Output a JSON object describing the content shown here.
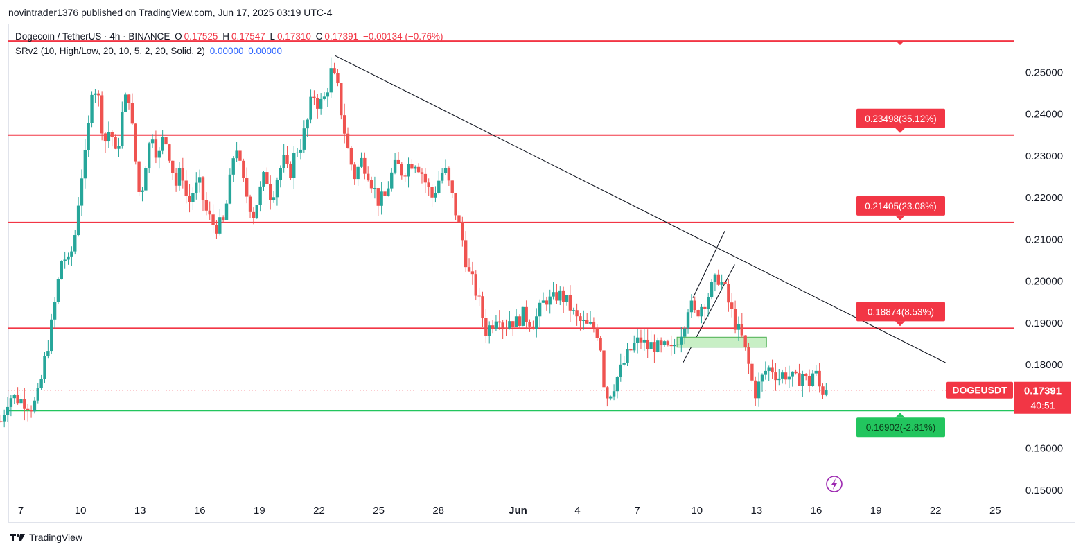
{
  "publisher_line": "novintrader1376 published on TradingView.com, Jun 17, 2025 03:19 UTC-4",
  "legend": {
    "symbol": "Dogecoin / TetherUS · 4h · BINANCE",
    "open_label": "O",
    "open": "0.17525",
    "high_label": "H",
    "high": "0.17547",
    "low_label": "L",
    "low": "0.17310",
    "close_label": "C",
    "close": "0.17391",
    "change": "−0.00134 (−0.76%)",
    "indicator": "SRv2 (10, High/Low, 20, 10, 5, 2, 20, Solid, 2)",
    "indicator_v1": "0.00000",
    "indicator_v2": "0.00000"
  },
  "footer_brand": "TradingView",
  "colors": {
    "up": "#26a69a",
    "down": "#ef5350",
    "red_line": "#f23645",
    "green_line": "#22c55e",
    "box_fill": "#c8efc5"
  },
  "chart_data": {
    "type": "candlestick",
    "symbol": "DOGEUSDT",
    "last_price": "0.17391",
    "countdown": "40:51",
    "y_ticks": [
      "0.25000",
      "0.24000",
      "0.23000",
      "0.22000",
      "0.21000",
      "0.20000",
      "0.19000",
      "0.18000",
      "0.17000",
      "0.16000",
      "0.15000"
    ],
    "y_tick_values": [
      0.25,
      0.24,
      0.23,
      0.22,
      0.21,
      0.2,
      0.19,
      0.18,
      0.17,
      0.16,
      0.15
    ],
    "y_range": [
      0.1425,
      0.2615
    ],
    "x_ticks": [
      {
        "label": "7",
        "day": 7
      },
      {
        "label": "10",
        "day": 10
      },
      {
        "label": "13",
        "day": 13
      },
      {
        "label": "16",
        "day": 16
      },
      {
        "label": "19",
        "day": 19
      },
      {
        "label": "22",
        "day": 22
      },
      {
        "label": "25",
        "day": 25
      },
      {
        "label": "28",
        "day": 28
      },
      {
        "label": "Jun",
        "day": 32
      },
      {
        "label": "4",
        "day": 35
      },
      {
        "label": "7",
        "day": 38
      },
      {
        "label": "10",
        "day": 41
      },
      {
        "label": "13",
        "day": 44
      },
      {
        "label": "16",
        "day": 47
      },
      {
        "label": "19",
        "day": 50
      },
      {
        "label": "22",
        "day": 53
      },
      {
        "label": "25",
        "day": 56
      }
    ],
    "levels": [
      {
        "value": 0.2575,
        "color": "red",
        "label": ""
      },
      {
        "value": 0.23498,
        "color": "red",
        "label": "0.23498(35.12%)"
      },
      {
        "value": 0.21405,
        "color": "red",
        "label": "0.21405(23.08%)"
      },
      {
        "value": 0.18874,
        "color": "red",
        "label": "0.18874(8.53%)"
      },
      {
        "value": 0.16902,
        "color": "green",
        "label": "0.16902(-2.81%)"
      }
    ],
    "trendline": {
      "from": {
        "day": 22.8,
        "price": 0.254
      },
      "to": {
        "day": 53.5,
        "price": 0.1805
      }
    },
    "channel": [
      {
        "from": {
          "day": 40.8,
          "price": 0.196
        },
        "to": {
          "day": 42.4,
          "price": 0.212
        }
      },
      {
        "from": {
          "day": 40.3,
          "price": 0.1805
        },
        "to": {
          "day": 42.9,
          "price": 0.204
        }
      }
    ],
    "zone": {
      "day_start": 40.0,
      "day_end": 44.5,
      "price_top": 0.1866,
      "price_bottom": 0.1842
    },
    "candles_path": [
      [
        6.0,
        0.1665
      ],
      [
        6.4,
        0.1725
      ],
      [
        6.8,
        0.172
      ],
      [
        7.2,
        0.1712
      ],
      [
        7.6,
        0.1698
      ],
      [
        7.9,
        0.1728
      ],
      [
        8.2,
        0.181
      ],
      [
        8.5,
        0.188
      ],
      [
        8.8,
        0.1975
      ],
      [
        9.1,
        0.2065
      ],
      [
        9.4,
        0.204
      ],
      [
        9.7,
        0.21
      ],
      [
        10.0,
        0.224
      ],
      [
        10.3,
        0.231
      ],
      [
        10.6,
        0.248
      ],
      [
        10.9,
        0.244
      ],
      [
        11.2,
        0.233
      ],
      [
        11.5,
        0.237
      ],
      [
        11.8,
        0.229
      ],
      [
        12.1,
        0.24
      ],
      [
        12.4,
        0.246
      ],
      [
        12.7,
        0.232
      ],
      [
        13.0,
        0.219
      ],
      [
        13.3,
        0.229
      ],
      [
        13.6,
        0.236
      ],
      [
        13.9,
        0.229
      ],
      [
        14.2,
        0.235
      ],
      [
        14.5,
        0.23
      ],
      [
        14.8,
        0.223
      ],
      [
        15.1,
        0.227
      ],
      [
        15.4,
        0.218
      ],
      [
        15.7,
        0.222
      ],
      [
        16.0,
        0.223
      ],
      [
        16.3,
        0.217
      ],
      [
        16.6,
        0.214
      ],
      [
        16.9,
        0.213
      ],
      [
        17.2,
        0.214
      ],
      [
        17.5,
        0.223
      ],
      [
        17.8,
        0.234
      ],
      [
        18.1,
        0.225
      ],
      [
        18.4,
        0.22
      ],
      [
        18.7,
        0.216
      ],
      [
        19.0,
        0.221
      ],
      [
        19.3,
        0.226
      ],
      [
        19.6,
        0.22
      ],
      [
        19.9,
        0.225
      ],
      [
        20.2,
        0.229
      ],
      [
        20.5,
        0.225
      ],
      [
        20.8,
        0.231
      ],
      [
        21.1,
        0.233
      ],
      [
        21.4,
        0.238
      ],
      [
        21.7,
        0.245
      ],
      [
        22.0,
        0.242
      ],
      [
        22.3,
        0.244
      ],
      [
        22.6,
        0.25
      ],
      [
        22.9,
        0.247
      ],
      [
        23.2,
        0.238
      ],
      [
        23.5,
        0.23
      ],
      [
        23.8,
        0.225
      ],
      [
        24.1,
        0.229
      ],
      [
        24.4,
        0.227
      ],
      [
        24.7,
        0.223
      ],
      [
        25.0,
        0.219
      ],
      [
        25.3,
        0.22
      ],
      [
        25.6,
        0.225
      ],
      [
        25.9,
        0.228
      ],
      [
        26.2,
        0.226
      ],
      [
        26.5,
        0.228
      ],
      [
        26.8,
        0.229
      ],
      [
        27.1,
        0.227
      ],
      [
        27.4,
        0.223
      ],
      [
        27.7,
        0.22
      ],
      [
        28.0,
        0.224
      ],
      [
        28.3,
        0.227
      ],
      [
        28.6,
        0.222
      ],
      [
        28.9,
        0.216
      ],
      [
        29.2,
        0.21
      ],
      [
        29.5,
        0.202
      ],
      [
        29.8,
        0.199
      ],
      [
        30.1,
        0.194
      ],
      [
        30.4,
        0.188
      ],
      [
        30.7,
        0.19
      ],
      [
        31.0,
        0.193
      ],
      [
        31.3,
        0.189
      ],
      [
        31.6,
        0.191
      ],
      [
        31.9,
        0.19
      ],
      [
        32.2,
        0.192
      ],
      [
        32.5,
        0.191
      ],
      [
        32.8,
        0.19
      ],
      [
        33.1,
        0.193
      ],
      [
        33.4,
        0.196
      ],
      [
        33.7,
        0.195
      ],
      [
        34.0,
        0.197
      ],
      [
        34.3,
        0.196
      ],
      [
        34.6,
        0.194
      ],
      [
        34.9,
        0.191
      ],
      [
        35.2,
        0.19
      ],
      [
        35.5,
        0.189
      ],
      [
        35.8,
        0.189
      ],
      [
        36.1,
        0.187
      ],
      [
        36.4,
        0.172
      ],
      [
        36.7,
        0.174
      ],
      [
        37.0,
        0.177
      ],
      [
        37.3,
        0.18
      ],
      [
        37.6,
        0.183
      ],
      [
        37.9,
        0.185
      ],
      [
        38.2,
        0.186
      ],
      [
        38.5,
        0.184
      ],
      [
        38.8,
        0.185
      ],
      [
        39.1,
        0.1835
      ],
      [
        39.4,
        0.184
      ],
      [
        39.7,
        0.183
      ],
      [
        40.0,
        0.186
      ],
      [
        40.3,
        0.189
      ],
      [
        40.6,
        0.195
      ],
      [
        40.9,
        0.192
      ],
      [
        41.2,
        0.194
      ],
      [
        41.5,
        0.196
      ],
      [
        41.8,
        0.199
      ],
      [
        42.1,
        0.201
      ],
      [
        42.4,
        0.198
      ],
      [
        42.7,
        0.193
      ],
      [
        43.0,
        0.189
      ],
      [
        43.3,
        0.186
      ],
      [
        43.6,
        0.18
      ],
      [
        43.9,
        0.173
      ],
      [
        44.2,
        0.176
      ],
      [
        44.5,
        0.179
      ],
      [
        44.8,
        0.179
      ],
      [
        45.1,
        0.177
      ],
      [
        45.4,
        0.178
      ],
      [
        45.7,
        0.177
      ],
      [
        46.0,
        0.176
      ],
      [
        46.3,
        0.178
      ],
      [
        46.6,
        0.175
      ],
      [
        46.9,
        0.179
      ],
      [
        47.2,
        0.174
      ],
      [
        47.5,
        0.1739
      ]
    ]
  }
}
